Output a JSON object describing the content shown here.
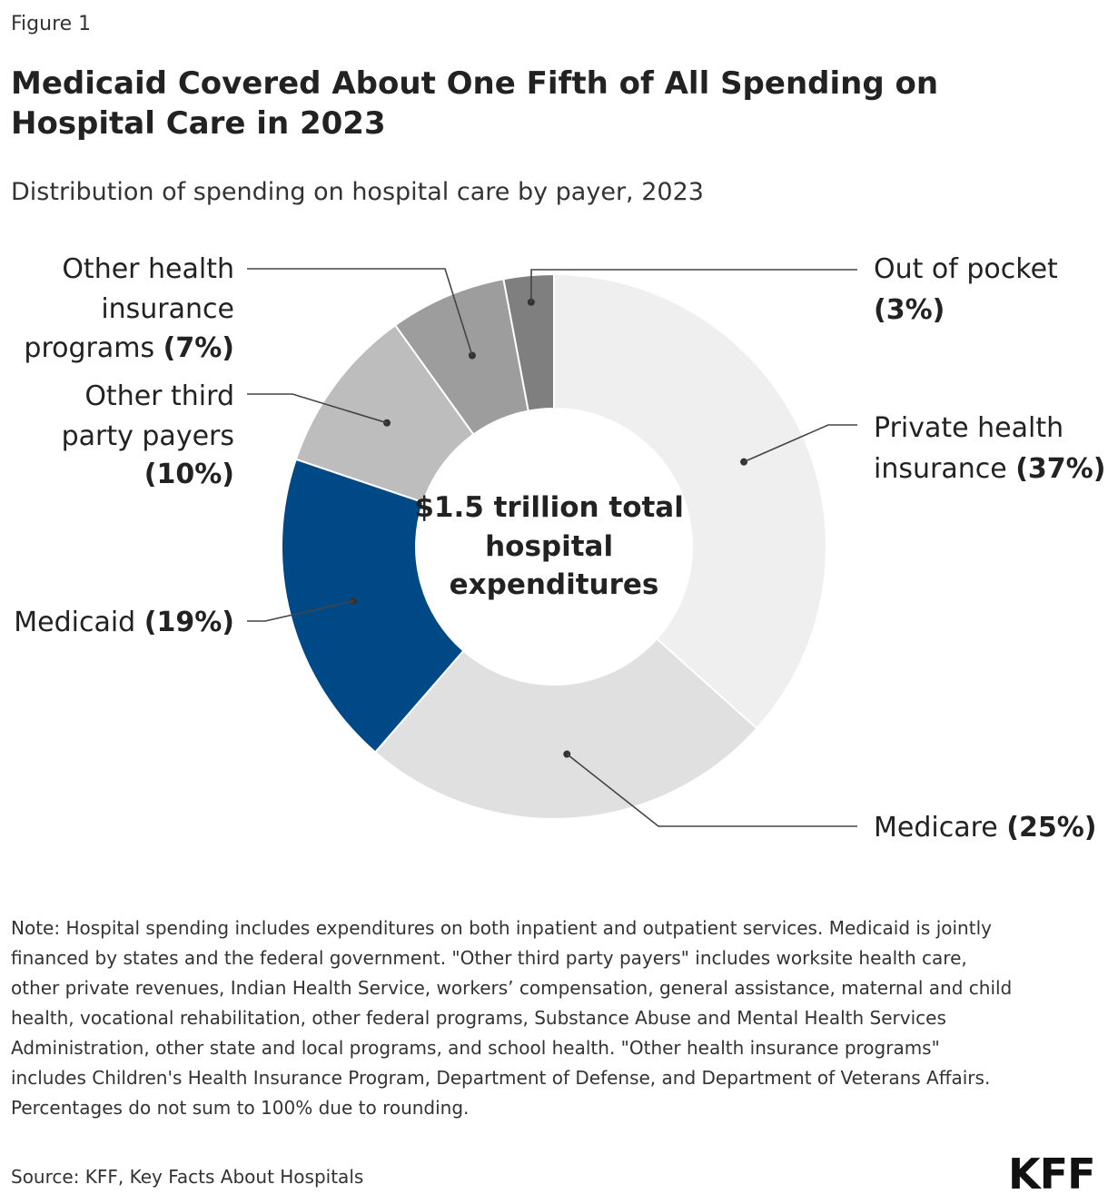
{
  "figure_label": "Figure 1",
  "title": "Medicaid Covered About One Fifth of All Spending on Hospital Care in 2023",
  "subtitle": "Distribution of spending on hospital care by payer, 2023",
  "center_label": [
    "$1.5 trillion total",
    "hospital",
    "expenditures"
  ],
  "note": "Note: Hospital spending includes expenditures on both inpatient and outpatient services. Medicaid is jointly financed by states and the federal government. \"Other third party payers\" includes worksite health care, other private revenues, Indian Health Service, workers’ compensation, general assistance, maternal and child health, vocational rehabilitation, other federal programs, Substance Abuse and Mental Health Services Administration, other state and local programs, and school health. \"Other health insurance programs\" includes Children's Health Insurance Program, Department of Defense, and Department of Veterans Affairs. Percentages do not sum to 100% due to rounding.",
  "source": "Source: KFF, Key Facts About Hospitals",
  "logo": "KFF",
  "chart_data": {
    "type": "pie",
    "title": "Medicaid Covered About One Fifth of All Spending on Hospital Care in 2023",
    "subtitle": "Distribution of spending on hospital care by payer, 2023",
    "total_label": "$1.5 trillion total hospital expenditures",
    "slices": [
      {
        "name": "Private health insurance",
        "value": 37,
        "value_label": "(37%)",
        "color": "#efefef",
        "label_lines": [
          [
            "Private health",
            ""
          ],
          [
            "insurance ",
            "(37%)"
          ]
        ]
      },
      {
        "name": "Medicare",
        "value": 25,
        "value_label": "(25%)",
        "color": "#e0e0e0",
        "label_lines": [
          [
            "Medicare ",
            "(25%)"
          ]
        ]
      },
      {
        "name": "Medicaid",
        "value": 19,
        "value_label": "(19%)",
        "color": "#004987",
        "label_lines": [
          [
            "Medicaid ",
            "(19%)"
          ]
        ]
      },
      {
        "name": "Other third party payers",
        "value": 10,
        "value_label": "(10%)",
        "color": "#bdbdbd",
        "label_lines": [
          [
            "Other third",
            ""
          ],
          [
            "party payers",
            ""
          ],
          [
            "",
            "(10%)"
          ]
        ]
      },
      {
        "name": "Other health insurance programs",
        "value": 7,
        "value_label": "(7%)",
        "color": "#9d9d9d",
        "label_lines": [
          [
            "Other health",
            ""
          ],
          [
            "insurance",
            ""
          ],
          [
            "programs ",
            "(7%)"
          ]
        ]
      },
      {
        "name": "Out of pocket",
        "value": 3,
        "value_label": "(3%)",
        "color": "#7f7f7f",
        "label_lines": [
          [
            "Out of pocket",
            ""
          ],
          [
            "",
            "(3%)"
          ]
        ]
      }
    ]
  }
}
